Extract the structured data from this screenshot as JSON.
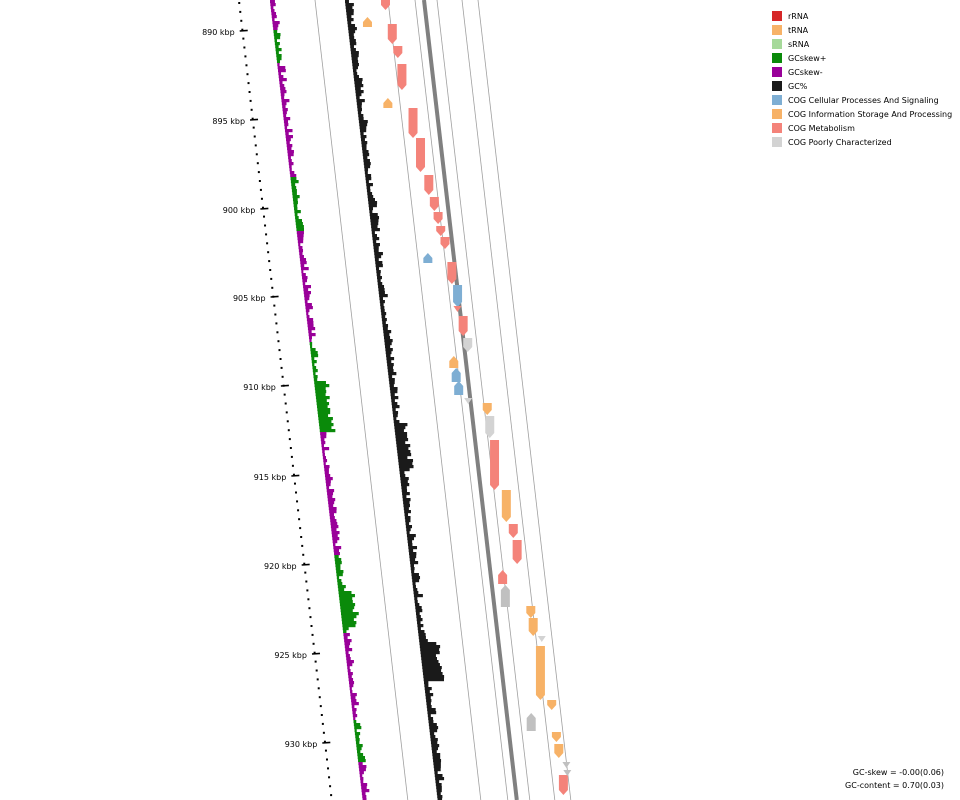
{
  "coordinate_labels": [
    "890 kbp",
    "895 kbp",
    "900 kbp",
    "905 kbp",
    "910 kbp",
    "915 kbp",
    "920 kbp",
    "925 kbp",
    "930 kbp"
  ],
  "legend": [
    {
      "label": "rRNA",
      "color": "#d62728"
    },
    {
      "label": "tRNA",
      "color": "#f7b267"
    },
    {
      "label": "sRNA",
      "color": "#a6d99a"
    },
    {
      "label": "GCskew+",
      "color": "#0a8a0a"
    },
    {
      "label": "GCskew-",
      "color": "#990099"
    },
    {
      "label": "GC%",
      "color": "#1a1a1a"
    },
    {
      "label": "COG Cellular Processes And Signaling",
      "color": "#7eaed3"
    },
    {
      "label": "COG Information Storage And Processing",
      "color": "#f7b267"
    },
    {
      "label": "COG Metabolism",
      "color": "#f4837a"
    },
    {
      "label": "COG Poorly Characterized",
      "color": "#d3d3d3"
    }
  ],
  "stats": {
    "gc_skew": "GC-skew = -0.00(0.06)",
    "gc_content": "GC-content = 0.70(0.03)"
  },
  "colors": {
    "backbone": "#808080",
    "rna_other": "#c0c0c0"
  }
}
